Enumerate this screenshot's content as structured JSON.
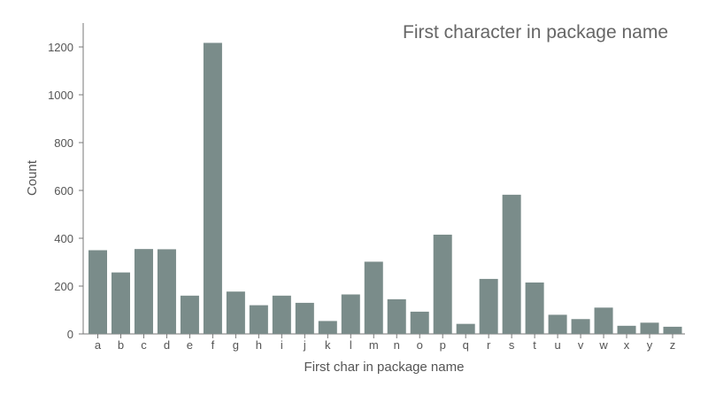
{
  "chart_data": {
    "type": "bar",
    "title": "First character in package name",
    "xlabel": "First char in package name",
    "ylabel": "Count",
    "categories": [
      "a",
      "b",
      "c",
      "d",
      "e",
      "f",
      "g",
      "h",
      "i",
      "j",
      "k",
      "l",
      "m",
      "n",
      "o",
      "p",
      "q",
      "r",
      "s",
      "t",
      "u",
      "v",
      "w",
      "x",
      "y",
      "z"
    ],
    "values": [
      350,
      257,
      355,
      354,
      160,
      1217,
      177,
      120,
      160,
      130,
      54,
      165,
      302,
      145,
      93,
      415,
      42,
      230,
      582,
      215,
      80,
      62,
      110,
      34,
      47,
      30
    ],
    "ylim": [
      0,
      1300
    ],
    "yticks": [
      0,
      200,
      400,
      600,
      800,
      1000,
      1200
    ],
    "grid": false,
    "bar_color": "#7a8c8a"
  }
}
